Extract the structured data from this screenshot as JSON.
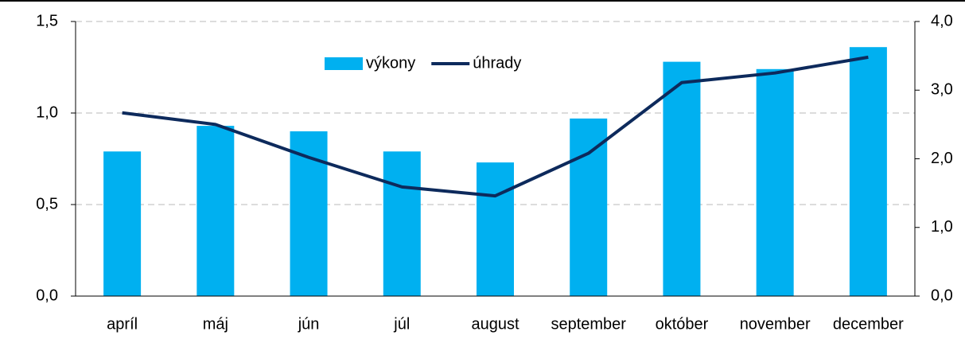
{
  "chart_data": {
    "type": "bar-line",
    "categories": [
      "apríl",
      "máj",
      "jún",
      "júl",
      "august",
      "september",
      "október",
      "november",
      "december"
    ],
    "series": [
      {
        "name": "výkony",
        "color": "#00b0f0",
        "type": "bar",
        "values": [
          0.79,
          0.93,
          0.9,
          0.79,
          0.73,
          0.97,
          1.28,
          1.24,
          1.36
        ]
      },
      {
        "name": "úhrady",
        "color": "#0d2a5c",
        "type": "line",
        "axis": "y2",
        "values": [
          2.67,
          2.5,
          2.02,
          1.59,
          1.46,
          2.08,
          3.11,
          3.25,
          3.48
        ]
      }
    ],
    "ylim": [
      0,
      1.5
    ],
    "yticks": [
      {
        "value": 0,
        "label": "0,0"
      },
      {
        "value": 0.5,
        "label": "0,5"
      },
      {
        "value": 1.0,
        "label": "1,0"
      },
      {
        "value": 1.5,
        "label": "1,5"
      }
    ],
    "y2lim": [
      0,
      4
    ],
    "y2ticks": [
      {
        "value": 0,
        "label": "0,0"
      },
      {
        "value": 1,
        "label": "1,0"
      },
      {
        "value": 2,
        "label": "2,0"
      },
      {
        "value": 3,
        "label": "3,0"
      },
      {
        "value": 4,
        "label": "4,0"
      }
    ],
    "grid": true,
    "legend": "top"
  }
}
